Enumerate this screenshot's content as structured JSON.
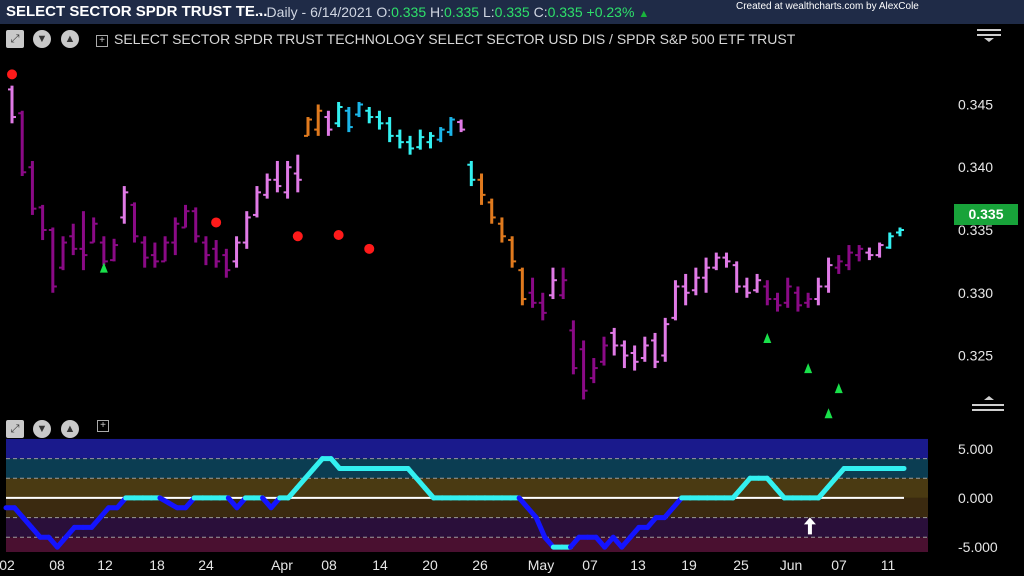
{
  "header": {
    "title": "SELECT SECTOR SPDR TRUST TE...",
    "interval": "- Daily -",
    "date": "6/14/2021",
    "o_label": "O:",
    "o": "0.335",
    "h_label": "H:",
    "h": "0.335",
    "l_label": "L:",
    "l": "0.335",
    "c_label": "C:",
    "c": "0.335",
    "change": "+0.23%",
    "credit": "Created at wealthcharts.com by AlexCole"
  },
  "chart_title": "SELECT SECTOR SPDR TRUST TECHNOLOGY SELECT SECTOR USD DIS / SPDR S&P 500 ETF TRUST",
  "last_price": "0.335",
  "colors": {
    "header_bg": "#1f2b47",
    "up": "#2ee06a",
    "last_price_bg": "#18a33a",
    "dark_purple": "#8a0a86",
    "light_pink": "#e07ae6",
    "orange": "#e07a1e",
    "cyan": "#33f0f0",
    "blue": "#1414ff"
  },
  "chart_data": [
    {
      "type": "ohlc",
      "ylim": [
        0.3205,
        0.3495
      ],
      "y_ticks": [
        "0.345",
        "0.340",
        "0.335",
        "0.330",
        "0.325"
      ],
      "x_ticks": [
        "02",
        "08",
        "12",
        "18",
        "24",
        "Apr",
        "08",
        "14",
        "20",
        "26",
        "May",
        "07",
        "13",
        "19",
        "25",
        "Jun",
        "07",
        "11"
      ],
      "bars": [
        {
          "h": 0.3465,
          "l": 0.3435,
          "o": 0.3462,
          "c": 0.344,
          "color": "light_pink"
        },
        {
          "h": 0.3445,
          "l": 0.3393,
          "o": 0.3443,
          "c": 0.3396,
          "color": "dark_purple"
        },
        {
          "h": 0.3405,
          "l": 0.3362,
          "o": 0.34,
          "c": 0.3367,
          "color": "dark_purple"
        },
        {
          "h": 0.337,
          "l": 0.3342,
          "o": 0.3368,
          "c": 0.335,
          "color": "dark_purple"
        },
        {
          "h": 0.3352,
          "l": 0.33,
          "o": 0.335,
          "c": 0.3305,
          "color": "dark_purple"
        },
        {
          "h": 0.3345,
          "l": 0.3318,
          "o": 0.332,
          "c": 0.334,
          "color": "dark_purple"
        },
        {
          "h": 0.3355,
          "l": 0.333,
          "o": 0.3345,
          "c": 0.3335,
          "color": "dark_purple"
        },
        {
          "h": 0.3365,
          "l": 0.3318,
          "o": 0.3335,
          "c": 0.333,
          "color": "dark_purple"
        },
        {
          "h": 0.336,
          "l": 0.334,
          "o": 0.334,
          "c": 0.3355,
          "color": "dark_purple"
        },
        {
          "h": 0.3345,
          "l": 0.3322,
          "o": 0.334,
          "c": 0.3325,
          "color": "dark_purple"
        },
        {
          "h": 0.3343,
          "l": 0.3325,
          "o": 0.3326,
          "c": 0.3338,
          "color": "dark_purple"
        },
        {
          "h": 0.3385,
          "l": 0.3355,
          "o": 0.336,
          "c": 0.338,
          "color": "light_pink"
        },
        {
          "h": 0.3372,
          "l": 0.334,
          "o": 0.337,
          "c": 0.3345,
          "color": "dark_purple"
        },
        {
          "h": 0.3345,
          "l": 0.332,
          "o": 0.334,
          "c": 0.3328,
          "color": "dark_purple"
        },
        {
          "h": 0.334,
          "l": 0.332,
          "o": 0.333,
          "c": 0.3325,
          "color": "dark_purple"
        },
        {
          "h": 0.3345,
          "l": 0.3325,
          "o": 0.3325,
          "c": 0.334,
          "color": "dark_purple"
        },
        {
          "h": 0.336,
          "l": 0.333,
          "o": 0.334,
          "c": 0.3355,
          "color": "dark_purple"
        },
        {
          "h": 0.337,
          "l": 0.3352,
          "o": 0.3352,
          "c": 0.3365,
          "color": "dark_purple"
        },
        {
          "h": 0.3368,
          "l": 0.334,
          "o": 0.3365,
          "c": 0.3345,
          "color": "dark_purple"
        },
        {
          "h": 0.3345,
          "l": 0.3322,
          "o": 0.334,
          "c": 0.333,
          "color": "dark_purple"
        },
        {
          "h": 0.3342,
          "l": 0.332,
          "o": 0.3335,
          "c": 0.3325,
          "color": "dark_purple"
        },
        {
          "h": 0.3335,
          "l": 0.3312,
          "o": 0.333,
          "c": 0.3318,
          "color": "dark_purple"
        },
        {
          "h": 0.3345,
          "l": 0.332,
          "o": 0.3325,
          "c": 0.334,
          "color": "light_pink"
        },
        {
          "h": 0.3365,
          "l": 0.3335,
          "o": 0.334,
          "c": 0.336,
          "color": "light_pink"
        },
        {
          "h": 0.3385,
          "l": 0.336,
          "o": 0.3362,
          "c": 0.338,
          "color": "light_pink"
        },
        {
          "h": 0.3395,
          "l": 0.3375,
          "o": 0.3378,
          "c": 0.339,
          "color": "light_pink"
        },
        {
          "h": 0.3405,
          "l": 0.338,
          "o": 0.339,
          "c": 0.3385,
          "color": "light_pink"
        },
        {
          "h": 0.3405,
          "l": 0.3375,
          "o": 0.338,
          "c": 0.34,
          "color": "light_pink"
        },
        {
          "h": 0.341,
          "l": 0.338,
          "o": 0.3395,
          "c": 0.339,
          "color": "light_pink"
        },
        {
          "h": 0.344,
          "l": 0.3425,
          "o": 0.3425,
          "c": 0.3438,
          "color": "orange"
        },
        {
          "h": 0.345,
          "l": 0.3425,
          "o": 0.343,
          "c": 0.3445,
          "color": "orange"
        },
        {
          "h": 0.3445,
          "l": 0.3425,
          "o": 0.344,
          "c": 0.343,
          "color": "light_pink"
        },
        {
          "h": 0.3452,
          "l": 0.3432,
          "o": 0.3435,
          "c": 0.3448,
          "color": "cyan"
        },
        {
          "h": 0.3448,
          "l": 0.3428,
          "o": 0.3445,
          "c": 0.3432,
          "color": "#1bb5e8"
        },
        {
          "h": 0.3452,
          "l": 0.344,
          "o": 0.3442,
          "c": 0.345,
          "color": "#1bb5e8"
        },
        {
          "h": 0.3448,
          "l": 0.3435,
          "o": 0.3445,
          "c": 0.344,
          "color": "cyan"
        },
        {
          "h": 0.3445,
          "l": 0.343,
          "o": 0.344,
          "c": 0.3435,
          "color": "cyan"
        },
        {
          "h": 0.344,
          "l": 0.342,
          "o": 0.3435,
          "c": 0.3425,
          "color": "cyan"
        },
        {
          "h": 0.343,
          "l": 0.3415,
          "o": 0.3425,
          "c": 0.342,
          "color": "cyan"
        },
        {
          "h": 0.3425,
          "l": 0.341,
          "o": 0.342,
          "c": 0.3415,
          "color": "cyan"
        },
        {
          "h": 0.343,
          "l": 0.3414,
          "o": 0.3416,
          "c": 0.3424,
          "color": "cyan"
        },
        {
          "h": 0.3428,
          "l": 0.3415,
          "o": 0.342,
          "c": 0.3425,
          "color": "cyan"
        },
        {
          "h": 0.3432,
          "l": 0.342,
          "o": 0.3422,
          "c": 0.343,
          "color": "#1bb5e8"
        },
        {
          "h": 0.344,
          "l": 0.3425,
          "o": 0.3428,
          "c": 0.3438,
          "color": "#1bb5e8"
        },
        {
          "h": 0.3438,
          "l": 0.3428,
          "o": 0.3436,
          "c": 0.343,
          "color": "light_pink"
        },
        {
          "h": 0.3405,
          "l": 0.3385,
          "o": 0.3402,
          "c": 0.339,
          "color": "cyan"
        },
        {
          "h": 0.3395,
          "l": 0.337,
          "o": 0.339,
          "c": 0.3378,
          "color": "orange"
        },
        {
          "h": 0.3375,
          "l": 0.3355,
          "o": 0.3372,
          "c": 0.336,
          "color": "orange"
        },
        {
          "h": 0.336,
          "l": 0.334,
          "o": 0.3355,
          "c": 0.3345,
          "color": "orange"
        },
        {
          "h": 0.3345,
          "l": 0.332,
          "o": 0.3342,
          "c": 0.3325,
          "color": "orange"
        },
        {
          "h": 0.332,
          "l": 0.329,
          "o": 0.3318,
          "c": 0.3295,
          "color": "orange"
        },
        {
          "h": 0.3312,
          "l": 0.3288,
          "o": 0.33,
          "c": 0.3292,
          "color": "dark_purple"
        },
        {
          "h": 0.33,
          "l": 0.3278,
          "o": 0.3292,
          "c": 0.3284,
          "color": "dark_purple"
        },
        {
          "h": 0.332,
          "l": 0.3295,
          "o": 0.3298,
          "c": 0.331,
          "color": "light_pink"
        },
        {
          "h": 0.332,
          "l": 0.3295,
          "o": 0.3298,
          "c": 0.331,
          "color": "dark_purple"
        },
        {
          "h": 0.3278,
          "l": 0.3235,
          "o": 0.327,
          "c": 0.324,
          "color": "dark_purple"
        },
        {
          "h": 0.3262,
          "l": 0.3215,
          "o": 0.3255,
          "c": 0.3222,
          "color": "dark_purple"
        },
        {
          "h": 0.3248,
          "l": 0.3228,
          "o": 0.3232,
          "c": 0.324,
          "color": "dark_purple"
        },
        {
          "h": 0.3265,
          "l": 0.3242,
          "o": 0.3245,
          "c": 0.3258,
          "color": "dark_purple"
        },
        {
          "h": 0.3272,
          "l": 0.325,
          "o": 0.3268,
          "c": 0.3258,
          "color": "light_pink"
        },
        {
          "h": 0.3262,
          "l": 0.324,
          "o": 0.3258,
          "c": 0.325,
          "color": "light_pink"
        },
        {
          "h": 0.3258,
          "l": 0.3238,
          "o": 0.3252,
          "c": 0.3245,
          "color": "light_pink"
        },
        {
          "h": 0.3265,
          "l": 0.3245,
          "o": 0.3248,
          "c": 0.3258,
          "color": "light_pink"
        },
        {
          "h": 0.3268,
          "l": 0.324,
          "o": 0.3262,
          "c": 0.3245,
          "color": "light_pink"
        },
        {
          "h": 0.328,
          "l": 0.3245,
          "o": 0.325,
          "c": 0.3275,
          "color": "light_pink"
        },
        {
          "h": 0.331,
          "l": 0.3278,
          "o": 0.328,
          "c": 0.3305,
          "color": "light_pink"
        },
        {
          "h": 0.3315,
          "l": 0.329,
          "o": 0.3305,
          "c": 0.33,
          "color": "light_pink"
        },
        {
          "h": 0.332,
          "l": 0.3298,
          "o": 0.3302,
          "c": 0.3312,
          "color": "light_pink"
        },
        {
          "h": 0.3328,
          "l": 0.33,
          "o": 0.3312,
          "c": 0.332,
          "color": "light_pink"
        },
        {
          "h": 0.3332,
          "l": 0.3318,
          "o": 0.332,
          "c": 0.3328,
          "color": "light_pink"
        },
        {
          "h": 0.3332,
          "l": 0.332,
          "o": 0.3328,
          "c": 0.3325,
          "color": "light_pink"
        },
        {
          "h": 0.3325,
          "l": 0.33,
          "o": 0.3322,
          "c": 0.3305,
          "color": "light_pink"
        },
        {
          "h": 0.3312,
          "l": 0.3296,
          "o": 0.3305,
          "c": 0.33,
          "color": "light_pink"
        },
        {
          "h": 0.3315,
          "l": 0.33,
          "o": 0.3302,
          "c": 0.331,
          "color": "light_pink"
        },
        {
          "h": 0.331,
          "l": 0.329,
          "o": 0.3305,
          "c": 0.3295,
          "color": "dark_purple"
        },
        {
          "h": 0.33,
          "l": 0.3285,
          "o": 0.3295,
          "c": 0.329,
          "color": "dark_purple"
        },
        {
          "h": 0.3312,
          "l": 0.3288,
          "o": 0.3292,
          "c": 0.3305,
          "color": "dark_purple"
        },
        {
          "h": 0.3305,
          "l": 0.3285,
          "o": 0.33,
          "c": 0.329,
          "color": "dark_purple"
        },
        {
          "h": 0.33,
          "l": 0.3288,
          "o": 0.3292,
          "c": 0.3295,
          "color": "dark_purple"
        },
        {
          "h": 0.3312,
          "l": 0.329,
          "o": 0.3295,
          "c": 0.3305,
          "color": "light_pink"
        },
        {
          "h": 0.3328,
          "l": 0.33,
          "o": 0.3305,
          "c": 0.3322,
          "color": "light_pink"
        },
        {
          "h": 0.333,
          "l": 0.3315,
          "o": 0.332,
          "c": 0.3325,
          "color": "dark_purple"
        },
        {
          "h": 0.3338,
          "l": 0.3318,
          "o": 0.3322,
          "c": 0.3332,
          "color": "dark_purple"
        },
        {
          "h": 0.3338,
          "l": 0.3325,
          "o": 0.333,
          "c": 0.3335,
          "color": "dark_purple"
        },
        {
          "h": 0.3336,
          "l": 0.3326,
          "o": 0.3332,
          "c": 0.333,
          "color": "light_pink"
        },
        {
          "h": 0.334,
          "l": 0.3328,
          "o": 0.333,
          "c": 0.3338,
          "color": "light_pink"
        },
        {
          "h": 0.3348,
          "l": 0.3335,
          "o": 0.3336,
          "c": 0.3345,
          "color": "cyan"
        },
        {
          "h": 0.3352,
          "l": 0.3345,
          "o": 0.3348,
          "c": 0.335,
          "color": "cyan"
        }
      ],
      "signals": {
        "red_dots": [
          [
            0,
            0.3474
          ],
          [
            20,
            0.3356
          ],
          [
            28,
            0.3345
          ],
          [
            32,
            0.3346
          ],
          [
            35,
            0.3335
          ]
        ],
        "up_triangles": [
          [
            9,
            0.332
          ],
          [
            74,
            0.3264
          ],
          [
            78,
            0.324
          ],
          [
            81,
            0.3224
          ],
          [
            80,
            0.3204
          ]
        ]
      }
    },
    {
      "type": "line",
      "ylim": [
        -5.5,
        6.3
      ],
      "y_ticks": [
        "5.000",
        "0.000",
        "-5.000"
      ],
      "zero_line": 0,
      "values": [
        -1,
        -1,
        -2,
        -3,
        -4,
        -4,
        -5,
        -4,
        -3,
        -3,
        -3,
        -2,
        -1,
        -1,
        0,
        0,
        0,
        0,
        0,
        -0.5,
        -1,
        -1,
        0,
        0,
        0,
        0,
        0,
        -1,
        0,
        0,
        0,
        -1,
        0,
        0,
        1,
        2,
        3,
        4,
        4,
        3,
        3,
        3,
        3,
        3,
        3,
        3,
        3,
        3,
        2,
        1,
        0,
        0,
        0,
        0,
        0,
        0,
        0,
        0,
        0,
        0,
        0,
        -1,
        -2,
        -4,
        -5,
        -5,
        -5,
        -4,
        -4,
        -4,
        -5,
        -4,
        -5,
        -4,
        -3,
        -3,
        -2,
        -2,
        -1,
        0,
        0,
        0,
        0,
        0,
        0,
        0,
        1,
        2,
        2,
        2,
        1,
        0,
        0,
        0,
        0,
        0,
        1,
        2,
        3,
        3,
        3,
        3,
        3,
        3,
        3,
        3
      ],
      "bands": [
        {
          "from": 4,
          "to": 6,
          "color": "#1a1a8c"
        },
        {
          "from": 2,
          "to": 4,
          "color": "#0b3d52"
        },
        {
          "from": 0,
          "to": 2,
          "color": "#4a3a12"
        },
        {
          "from": -2,
          "to": 0,
          "color": "#3b2a10"
        },
        {
          "from": -4,
          "to": -2,
          "color": "#2a0f3a"
        },
        {
          "from": -5.5,
          "to": -4,
          "color": "#4a1030"
        }
      ]
    }
  ]
}
